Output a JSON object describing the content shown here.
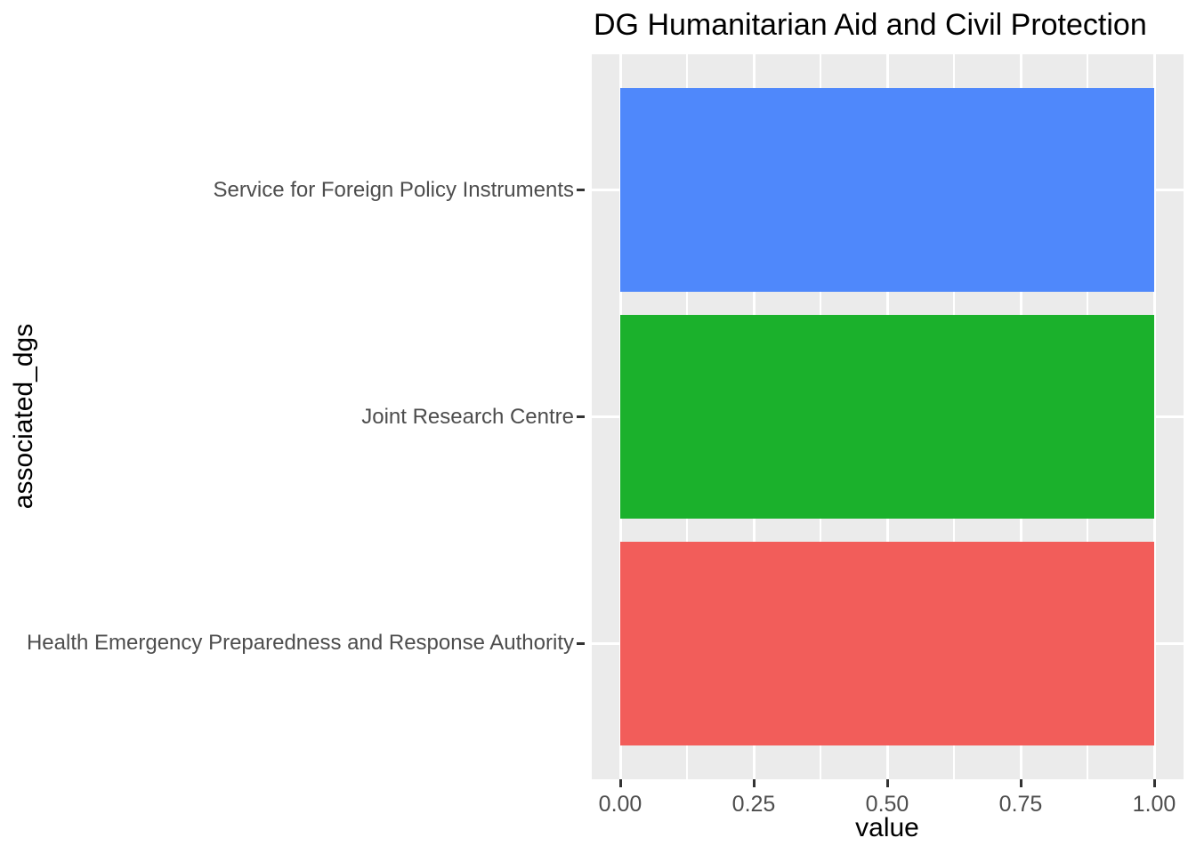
{
  "chart_data": {
    "type": "bar",
    "orientation": "horizontal",
    "title": "DG Humanitarian Aid and Civil Protection",
    "xlabel": "value",
    "ylabel": "associated_dgs",
    "categories": [
      "Service for Foreign Policy Instruments",
      "Joint Research Centre",
      "Health Emergency Preparedness and Response Authority"
    ],
    "values": [
      1.0,
      1.0,
      1.0
    ],
    "bar_colors": [
      "#4F88FB",
      "#1BB12C",
      "#F25D5A"
    ],
    "xlim": [
      0.0,
      1.0
    ],
    "x_ticks": [
      "0.00",
      "0.25",
      "0.50",
      "0.75",
      "1.00"
    ],
    "x_tick_values": [
      0.0,
      0.25,
      0.5,
      0.75,
      1.0
    ],
    "grid": true,
    "legend": "none",
    "panel_bg": "#EBEBEB",
    "gridline_color": "#FFFFFF",
    "tick_mark_color": "#333333",
    "tick_label_color": "#4D4D4D",
    "title_color": "#000000"
  }
}
